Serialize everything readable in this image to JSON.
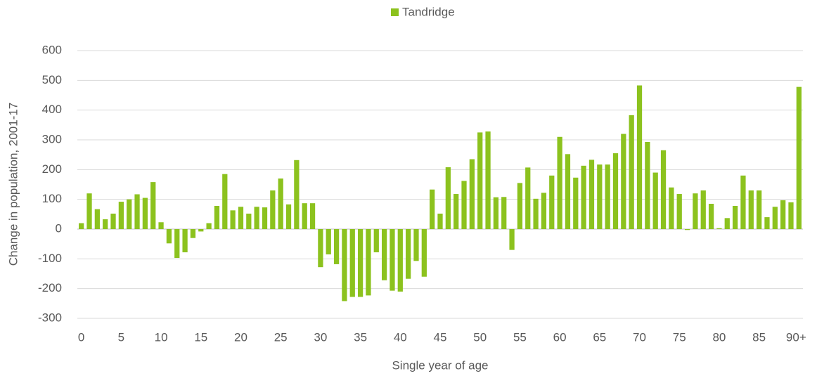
{
  "chart_data": {
    "type": "bar",
    "series": [
      {
        "name": "Tandridge",
        "color": "#8cc21e",
        "values": [
          20,
          120,
          67,
          33,
          52,
          92,
          100,
          117,
          105,
          158,
          23,
          -48,
          -97,
          -78,
          -30,
          -8,
          20,
          78,
          185,
          63,
          75,
          52,
          75,
          73,
          130,
          170,
          83,
          232,
          87,
          87,
          -128,
          -85,
          -118,
          -242,
          -228,
          -228,
          -223,
          -78,
          -172,
          -207,
          -210,
          -167,
          -107,
          -160,
          133,
          52,
          208,
          118,
          162,
          235,
          325,
          328,
          107,
          108,
          -70,
          155,
          207,
          102,
          122,
          180,
          310,
          252,
          173,
          213,
          233,
          217,
          217,
          255,
          320,
          383,
          483,
          293,
          190,
          265,
          140,
          118,
          -3,
          120,
          130,
          85,
          3,
          37,
          78,
          180,
          130,
          130,
          40,
          75,
          97,
          90,
          478
        ]
      }
    ],
    "categories": [
      "0",
      null,
      null,
      null,
      null,
      "5",
      null,
      null,
      null,
      null,
      "10",
      null,
      null,
      null,
      null,
      "15",
      null,
      null,
      null,
      null,
      "20",
      null,
      null,
      null,
      null,
      "25",
      null,
      null,
      null,
      null,
      "30",
      null,
      null,
      null,
      null,
      "35",
      null,
      null,
      null,
      null,
      "40",
      null,
      null,
      null,
      null,
      "45",
      null,
      null,
      null,
      null,
      "50",
      null,
      null,
      null,
      null,
      "55",
      null,
      null,
      null,
      null,
      "60",
      null,
      null,
      null,
      null,
      "65",
      null,
      null,
      null,
      null,
      "70",
      null,
      null,
      null,
      null,
      "75",
      null,
      null,
      null,
      null,
      "80",
      null,
      null,
      null,
      null,
      "85",
      null,
      null,
      null,
      null,
      "90+"
    ],
    "x_label": "Single year of age",
    "y_label": "Change in population, 2001-17",
    "ylim": [
      -300,
      600
    ],
    "yticks": [
      -300,
      -200,
      -100,
      0,
      100,
      200,
      300,
      400,
      500,
      600
    ],
    "grid": true,
    "legend": "top"
  }
}
